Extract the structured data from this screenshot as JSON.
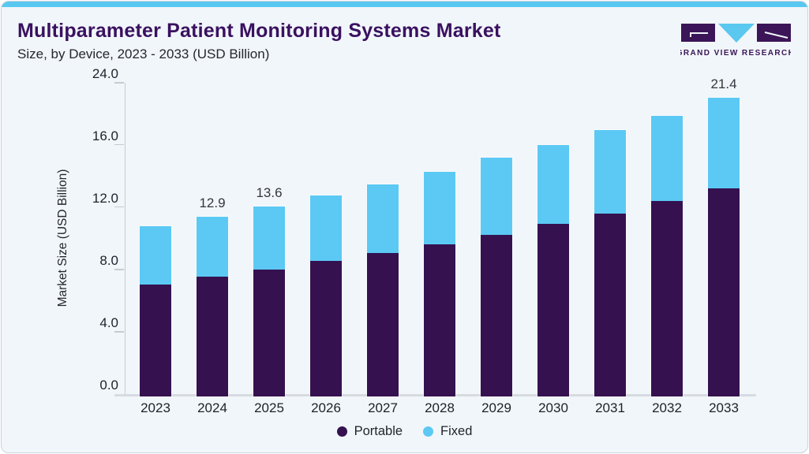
{
  "header": {
    "title": "Multiparameter Patient Monitoring Systems Market",
    "subtitle": "Size, by Device, 2023 - 2033 (USD Billion)",
    "logo_text": "GRAND VIEW RESEARCH"
  },
  "colors": {
    "card_background": "#f1f6fa",
    "top_strip": "#58c8f1",
    "title": "#3a1160",
    "portable": "#351150",
    "fixed": "#5bc9f4",
    "axis_line": "#c6cbd4",
    "logo_purple": "#3b1557",
    "logo_blue": "#5ac8ef"
  },
  "chart": {
    "y_axis_title": "Market Size (USD Billion)",
    "y_ticks": [
      {
        "label": "24.0",
        "value": 24
      },
      {
        "label": "16.0",
        "value": 16
      },
      {
        "label": "12.0",
        "value": 12
      },
      {
        "label": "8.0",
        "value": 8
      },
      {
        "label": "4.0",
        "value": 4
      },
      {
        "label": "0.0",
        "value": 0
      }
    ],
    "value_labels": [
      {
        "category": "2024",
        "text": "12.9"
      },
      {
        "category": "2025",
        "text": "13.6"
      },
      {
        "category": "2033",
        "text": "21.4"
      }
    ]
  },
  "chart_data": {
    "type": "bar",
    "stacked": true,
    "title": "Multiparameter Patient Monitoring Systems Market Size, by Device, 2023 - 2033 (USD Billion)",
    "categories": [
      "2023",
      "2024",
      "2025",
      "2026",
      "2027",
      "2028",
      "2029",
      "2030",
      "2031",
      "2032",
      "2033"
    ],
    "series": [
      {
        "name": "Portable",
        "color": "#351150",
        "values": [
          8.0,
          8.6,
          9.1,
          9.7,
          10.3,
          10.9,
          11.6,
          12.4,
          13.1,
          14.0,
          14.9
        ]
      },
      {
        "name": "Fixed",
        "color": "#5bc9f4",
        "values": [
          4.2,
          4.3,
          4.5,
          4.7,
          4.9,
          5.2,
          5.5,
          5.6,
          6.0,
          6.1,
          6.5
        ]
      }
    ],
    "totals": [
      12.2,
      12.9,
      13.6,
      14.4,
      15.2,
      16.1,
      17.1,
      18.0,
      19.1,
      20.1,
      21.4
    ],
    "labeled_totals": {
      "2024": 12.9,
      "2025": 13.6,
      "2033": 21.4
    },
    "xlabel": "",
    "ylabel": "Market Size (USD Billion)",
    "ylim": [
      0,
      24
    ],
    "yticks": [
      0,
      4,
      8,
      12,
      16,
      24
    ],
    "grid": false,
    "legend_position": "bottom"
  },
  "legend": [
    {
      "label": "Portable",
      "color": "#351150"
    },
    {
      "label": "Fixed",
      "color": "#5bc9f4"
    }
  ]
}
